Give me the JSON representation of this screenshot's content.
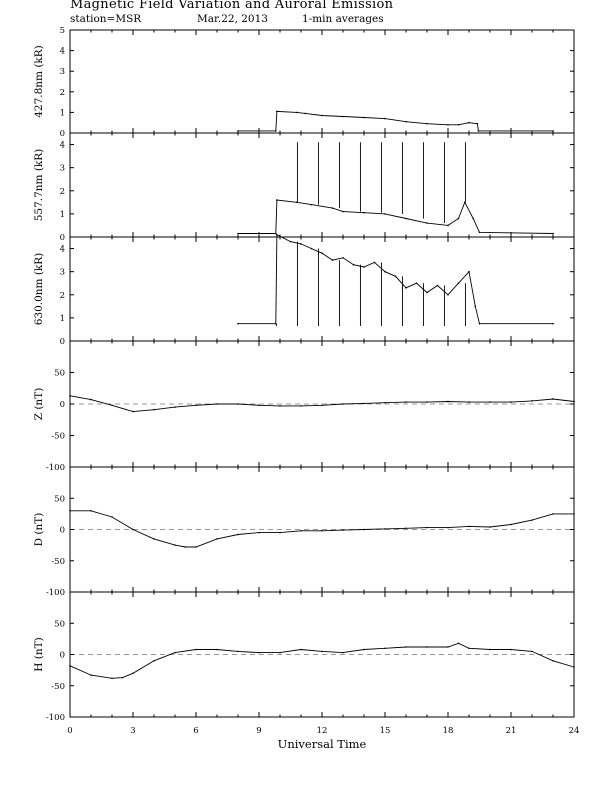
{
  "header": {
    "title": "Magnetic Field Variation and Auroral Emission",
    "station": "station=MSR",
    "date": "Mar.22, 2013",
    "averaging": "1-min averages"
  },
  "chart_data": [
    {
      "type": "line",
      "ylabel": "427.8nm (kR)",
      "ylim": [
        0,
        5
      ],
      "yticks": [
        "0",
        "1",
        "2",
        "3",
        "4",
        "5"
      ],
      "x": [
        8.0,
        9.8,
        9.85,
        10.8,
        11.2,
        12.0,
        13.0,
        14.0,
        15.0,
        16.0,
        17.0,
        18.0,
        18.5,
        19.0,
        19.4,
        19.45,
        23.0
      ],
      "series": [
        {
          "values": [
            0.1,
            0.1,
            1.05,
            1.0,
            0.95,
            0.85,
            0.8,
            0.75,
            0.7,
            0.55,
            0.45,
            0.4,
            0.4,
            0.5,
            0.45,
            0.1,
            0.1
          ]
        }
      ]
    },
    {
      "type": "line",
      "ylabel": "557.7nm (kR)",
      "ylim": [
        0,
        4.5
      ],
      "yticks": [
        "0",
        "1",
        "2",
        "3",
        "4"
      ],
      "x": [
        8.0,
        9.8,
        9.85,
        10.8,
        11.5,
        12.5,
        13.0,
        14.0,
        15.0,
        16.0,
        17.0,
        18.0,
        18.5,
        18.8,
        19.2,
        19.5,
        23.0
      ],
      "series": [
        {
          "values": [
            0.15,
            0.15,
            1.6,
            1.5,
            1.4,
            1.25,
            1.1,
            1.05,
            1.0,
            0.8,
            0.6,
            0.5,
            0.8,
            1.5,
            0.8,
            0.2,
            0.15
          ]
        }
      ],
      "spikes_x": [
        10.83,
        11.83,
        12.83,
        13.83,
        14.83,
        15.83,
        16.83,
        17.83,
        18.83
      ],
      "spike_value": 4.1
    },
    {
      "type": "line",
      "ylabel": "630.0nm (kR)",
      "ylim": [
        0,
        4.5
      ],
      "yticks": [
        "0",
        "1",
        "2",
        "3",
        "4"
      ],
      "x": [
        8.0,
        9.8,
        9.85,
        10.5,
        11.0,
        11.5,
        12.0,
        12.5,
        13.0,
        13.5,
        14.0,
        14.5,
        15.0,
        15.5,
        16.0,
        16.5,
        17.0,
        17.5,
        18.0,
        18.5,
        19.0,
        19.3,
        19.5,
        23.0
      ],
      "series": [
        {
          "values": [
            0.75,
            0.75,
            4.6,
            4.3,
            4.2,
            4.0,
            3.8,
            3.5,
            3.6,
            3.3,
            3.2,
            3.4,
            3.0,
            2.8,
            2.3,
            2.5,
            2.1,
            2.4,
            2.0,
            2.5,
            3.0,
            1.5,
            0.75,
            0.75
          ]
        }
      ],
      "spikes_x": [
        9.83,
        10.83,
        11.83,
        12.83,
        13.83,
        14.83,
        15.83,
        16.83,
        17.83,
        18.83
      ],
      "spike_value": 0.65
    },
    {
      "type": "line",
      "ylabel": "Z (nT)",
      "ylim": [
        -100,
        100
      ],
      "yticks": [
        "-100",
        "-50",
        "0",
        "50"
      ],
      "x": [
        0,
        1,
        2,
        3,
        4,
        5,
        6,
        7,
        8,
        9,
        10,
        11,
        12,
        13,
        14,
        15,
        16,
        17,
        18,
        19,
        20,
        21,
        22,
        23,
        24
      ],
      "series": [
        {
          "values": [
            13,
            7,
            -2,
            -12,
            -9,
            -5,
            -2,
            0,
            0,
            -2,
            -3,
            -3,
            -2,
            0,
            1,
            2,
            3,
            3,
            4,
            3,
            3,
            3,
            5,
            8,
            4
          ]
        }
      ]
    },
    {
      "type": "line",
      "ylabel": "D (nT)",
      "ylim": [
        -100,
        100
      ],
      "yticks": [
        "-100",
        "-50",
        "0",
        "50"
      ],
      "x": [
        0,
        1,
        2,
        3,
        4,
        5,
        5.5,
        6,
        7,
        8,
        9,
        10,
        11,
        12,
        13,
        14,
        15,
        16,
        17,
        18,
        19,
        20,
        21,
        22,
        23,
        24
      ],
      "series": [
        {
          "values": [
            30,
            30,
            20,
            0,
            -15,
            -25,
            -28,
            -28,
            -15,
            -8,
            -5,
            -5,
            -2,
            -2,
            -1,
            0,
            1,
            2,
            3,
            3,
            5,
            4,
            8,
            15,
            25,
            25
          ]
        }
      ]
    },
    {
      "type": "line",
      "ylabel": "H (nT)",
      "ylim": [
        -100,
        100
      ],
      "yticks": [
        "-100",
        "-50",
        "0",
        "50"
      ],
      "x": [
        0,
        1,
        2,
        2.5,
        3,
        4,
        5,
        6,
        7,
        8,
        9,
        10,
        11,
        12,
        13,
        14,
        15,
        16,
        17,
        18,
        18.5,
        19,
        20,
        21,
        22,
        23,
        24
      ],
      "series": [
        {
          "values": [
            -18,
            -33,
            -38,
            -37,
            -30,
            -10,
            3,
            8,
            8,
            5,
            3,
            3,
            8,
            5,
            3,
            8,
            10,
            12,
            12,
            12,
            18,
            10,
            8,
            8,
            5,
            -10,
            -20
          ]
        }
      ]
    }
  ],
  "x_axis": {
    "label": "Universal Time",
    "range": [
      0,
      24
    ],
    "ticks": [
      "0",
      "3",
      "6",
      "9",
      "12",
      "15",
      "18",
      "21",
      "24"
    ]
  }
}
